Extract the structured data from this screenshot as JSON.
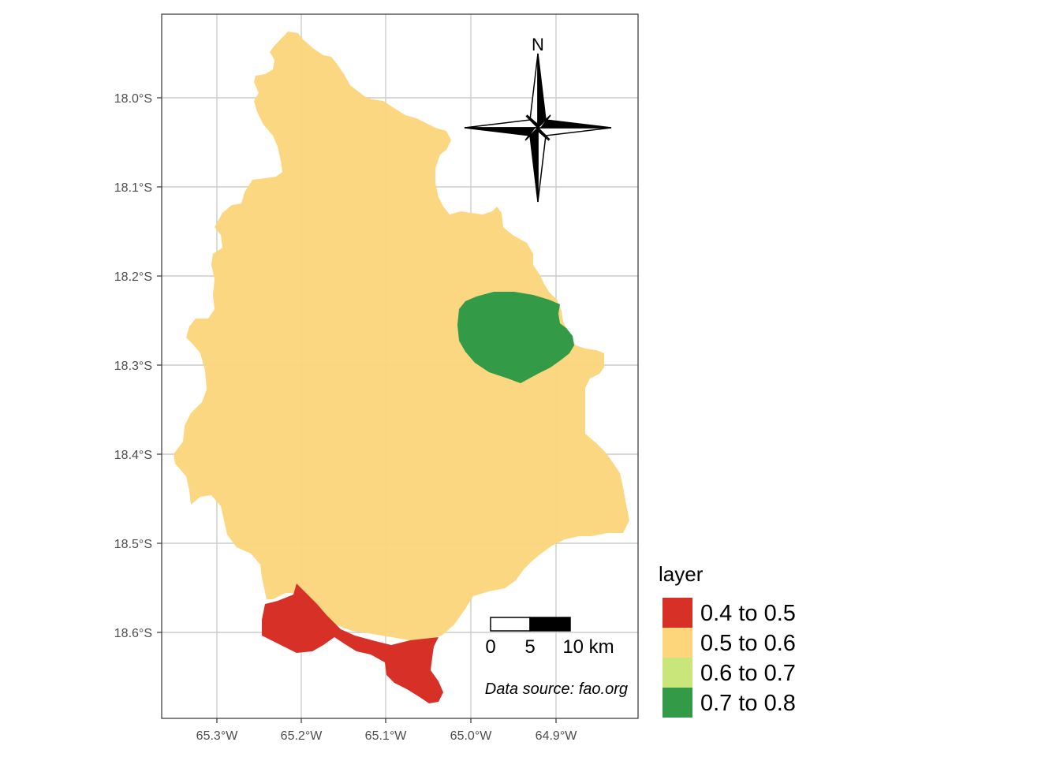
{
  "map": {
    "x_ticks": [
      "65.3°W",
      "65.2°W",
      "65.1°W",
      "65.0°W",
      "64.9°W"
    ],
    "y_ticks": [
      "18.0°S",
      "18.1°S",
      "18.2°S",
      "18.3°S",
      "18.4°S",
      "18.5°S",
      "18.6°S"
    ],
    "grid": true,
    "north_arrow_label": "N",
    "scalebar": {
      "labels": [
        "0",
        "5",
        "10 km"
      ]
    },
    "source_note": "Data source: fao.org"
  },
  "legend": {
    "title": "layer",
    "items": [
      {
        "label": "0.4 to 0.5",
        "color": "#d73027"
      },
      {
        "label": "0.5 to 0.6",
        "color": "#fdd57a"
      },
      {
        "label": "0.6 to 0.7",
        "color": "#c9e67a"
      },
      {
        "label": "0.7 to 0.8",
        "color": "#339b47"
      }
    ]
  },
  "regions": {
    "class_0_5_to_0_6": {
      "color": "#fbd57a"
    },
    "class_0_4_to_0_5": {
      "color": "#d73027"
    },
    "class_0_7_to_0_8": {
      "color": "#339b47"
    }
  }
}
